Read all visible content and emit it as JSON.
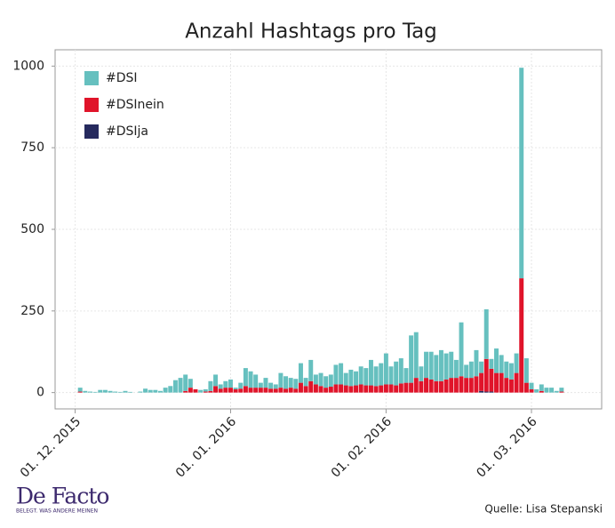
{
  "chart_data": {
    "type": "bar",
    "stacked": true,
    "title": "Anzahl Hashtags pro Tag",
    "x": [
      "2015-12-02",
      "2015-12-03",
      "2015-12-04",
      "2015-12-05",
      "2015-12-06",
      "2015-12-07",
      "2015-12-08",
      "2015-12-09",
      "2015-12-10",
      "2015-12-11",
      "2015-12-12",
      "2015-12-13",
      "2015-12-14",
      "2015-12-15",
      "2015-12-16",
      "2015-12-17",
      "2015-12-18",
      "2015-12-19",
      "2015-12-20",
      "2015-12-21",
      "2015-12-22",
      "2015-12-23",
      "2015-12-24",
      "2015-12-25",
      "2015-12-26",
      "2015-12-27",
      "2015-12-28",
      "2015-12-29",
      "2015-12-30",
      "2015-12-31",
      "2016-01-01",
      "2016-01-02",
      "2016-01-03",
      "2016-01-04",
      "2016-01-05",
      "2016-01-06",
      "2016-01-07",
      "2016-01-08",
      "2016-01-09",
      "2016-01-10",
      "2016-01-11",
      "2016-01-12",
      "2016-01-13",
      "2016-01-14",
      "2016-01-15",
      "2016-01-16",
      "2016-01-17",
      "2016-01-18",
      "2016-01-19",
      "2016-01-20",
      "2016-01-21",
      "2016-01-22",
      "2016-01-23",
      "2016-01-24",
      "2016-01-25",
      "2016-01-26",
      "2016-01-27",
      "2016-01-28",
      "2016-01-29",
      "2016-01-30",
      "2016-01-31",
      "2016-02-01",
      "2016-02-02",
      "2016-02-03",
      "2016-02-04",
      "2016-02-05",
      "2016-02-06",
      "2016-02-07",
      "2016-02-08",
      "2016-02-09",
      "2016-02-10",
      "2016-02-11",
      "2016-02-12",
      "2016-02-13",
      "2016-02-14",
      "2016-02-15",
      "2016-02-16",
      "2016-02-17",
      "2016-02-18",
      "2016-02-19",
      "2016-02-20",
      "2016-02-21",
      "2016-02-22",
      "2016-02-23",
      "2016-02-24",
      "2016-02-25",
      "2016-02-26",
      "2016-02-27",
      "2016-02-28",
      "2016-02-29",
      "2016-03-01",
      "2016-03-02",
      "2016-03-03",
      "2016-03-04",
      "2016-03-05",
      "2016-03-06",
      "2016-03-07"
    ],
    "series": [
      {
        "name": "#DSI",
        "color": "#66c0bf",
        "values": [
          12,
          5,
          3,
          2,
          8,
          8,
          5,
          3,
          2,
          5,
          2,
          0,
          3,
          12,
          8,
          8,
          5,
          15,
          20,
          38,
          45,
          50,
          27,
          0,
          8,
          7,
          30,
          35,
          13,
          20,
          25,
          5,
          18,
          55,
          50,
          40,
          15,
          30,
          18,
          13,
          45,
          38,
          30,
          30,
          60,
          25,
          65,
          30,
          40,
          35,
          37,
          60,
          65,
          38,
          50,
          43,
          55,
          53,
          78,
          60,
          68,
          95,
          55,
          73,
          77,
          45,
          145,
          140,
          45,
          80,
          85,
          80,
          95,
          80,
          80,
          55,
          165,
          40,
          50,
          80,
          35,
          152,
          30,
          75,
          55,
          50,
          50,
          60,
          645,
          75,
          20,
          10,
          20,
          15,
          15,
          5,
          12
        ]
      },
      {
        "name": "#DSInein",
        "color": "#e0142a",
        "values": [
          3,
          0,
          0,
          0,
          0,
          0,
          0,
          0,
          0,
          0,
          0,
          0,
          0,
          0,
          0,
          0,
          0,
          0,
          0,
          0,
          0,
          5,
          15,
          10,
          0,
          3,
          5,
          20,
          12,
          15,
          15,
          10,
          12,
          20,
          15,
          15,
          15,
          15,
          12,
          12,
          15,
          12,
          15,
          12,
          30,
          20,
          35,
          25,
          20,
          15,
          18,
          25,
          25,
          22,
          20,
          22,
          25,
          22,
          22,
          20,
          22,
          25,
          25,
          22,
          28,
          30,
          30,
          45,
          35,
          45,
          40,
          35,
          35,
          40,
          45,
          45,
          50,
          45,
          45,
          50,
          55,
          100,
          70,
          60,
          60,
          45,
          40,
          60,
          350,
          30,
          10,
          0,
          5,
          0,
          0,
          0,
          3
        ]
      },
      {
        "name": "#DSIja",
        "color": "#262a5e",
        "values": [
          0,
          0,
          0,
          0,
          0,
          0,
          0,
          0,
          0,
          0,
          0,
          0,
          0,
          0,
          0,
          0,
          0,
          0,
          0,
          0,
          0,
          0,
          0,
          0,
          0,
          0,
          0,
          0,
          0,
          0,
          0,
          0,
          0,
          0,
          0,
          0,
          0,
          0,
          0,
          0,
          0,
          0,
          0,
          0,
          0,
          0,
          0,
          0,
          0,
          0,
          0,
          0,
          0,
          0,
          0,
          0,
          0,
          0,
          0,
          0,
          0,
          0,
          0,
          0,
          0,
          0,
          0,
          0,
          0,
          0,
          0,
          0,
          0,
          0,
          0,
          0,
          0,
          0,
          0,
          0,
          5,
          3,
          3,
          0,
          0,
          0,
          0,
          0,
          0,
          0,
          0,
          0,
          0,
          0,
          0,
          0,
          0
        ]
      }
    ],
    "xlim": [
      "2015-11-27",
      "2016-03-15"
    ],
    "xticks": [
      {
        "value": "2015-12-01",
        "label": "01. 12. 2015"
      },
      {
        "value": "2016-01-01",
        "label": "01. 01. 2016"
      },
      {
        "value": "2016-02-01",
        "label": "01. 02. 2016"
      },
      {
        "value": "2016-03-01",
        "label": "01. 03. 2016"
      }
    ],
    "ylim": [
      -50,
      1050
    ],
    "yticks": [
      0,
      250,
      500,
      750,
      1000
    ],
    "grid": true,
    "legend": "upper left",
    "logo": "De Facto",
    "logo_tagline": "BELEGT. WAS ANDERE MEINEN",
    "source": "Quelle: Lisa Stepanski"
  }
}
